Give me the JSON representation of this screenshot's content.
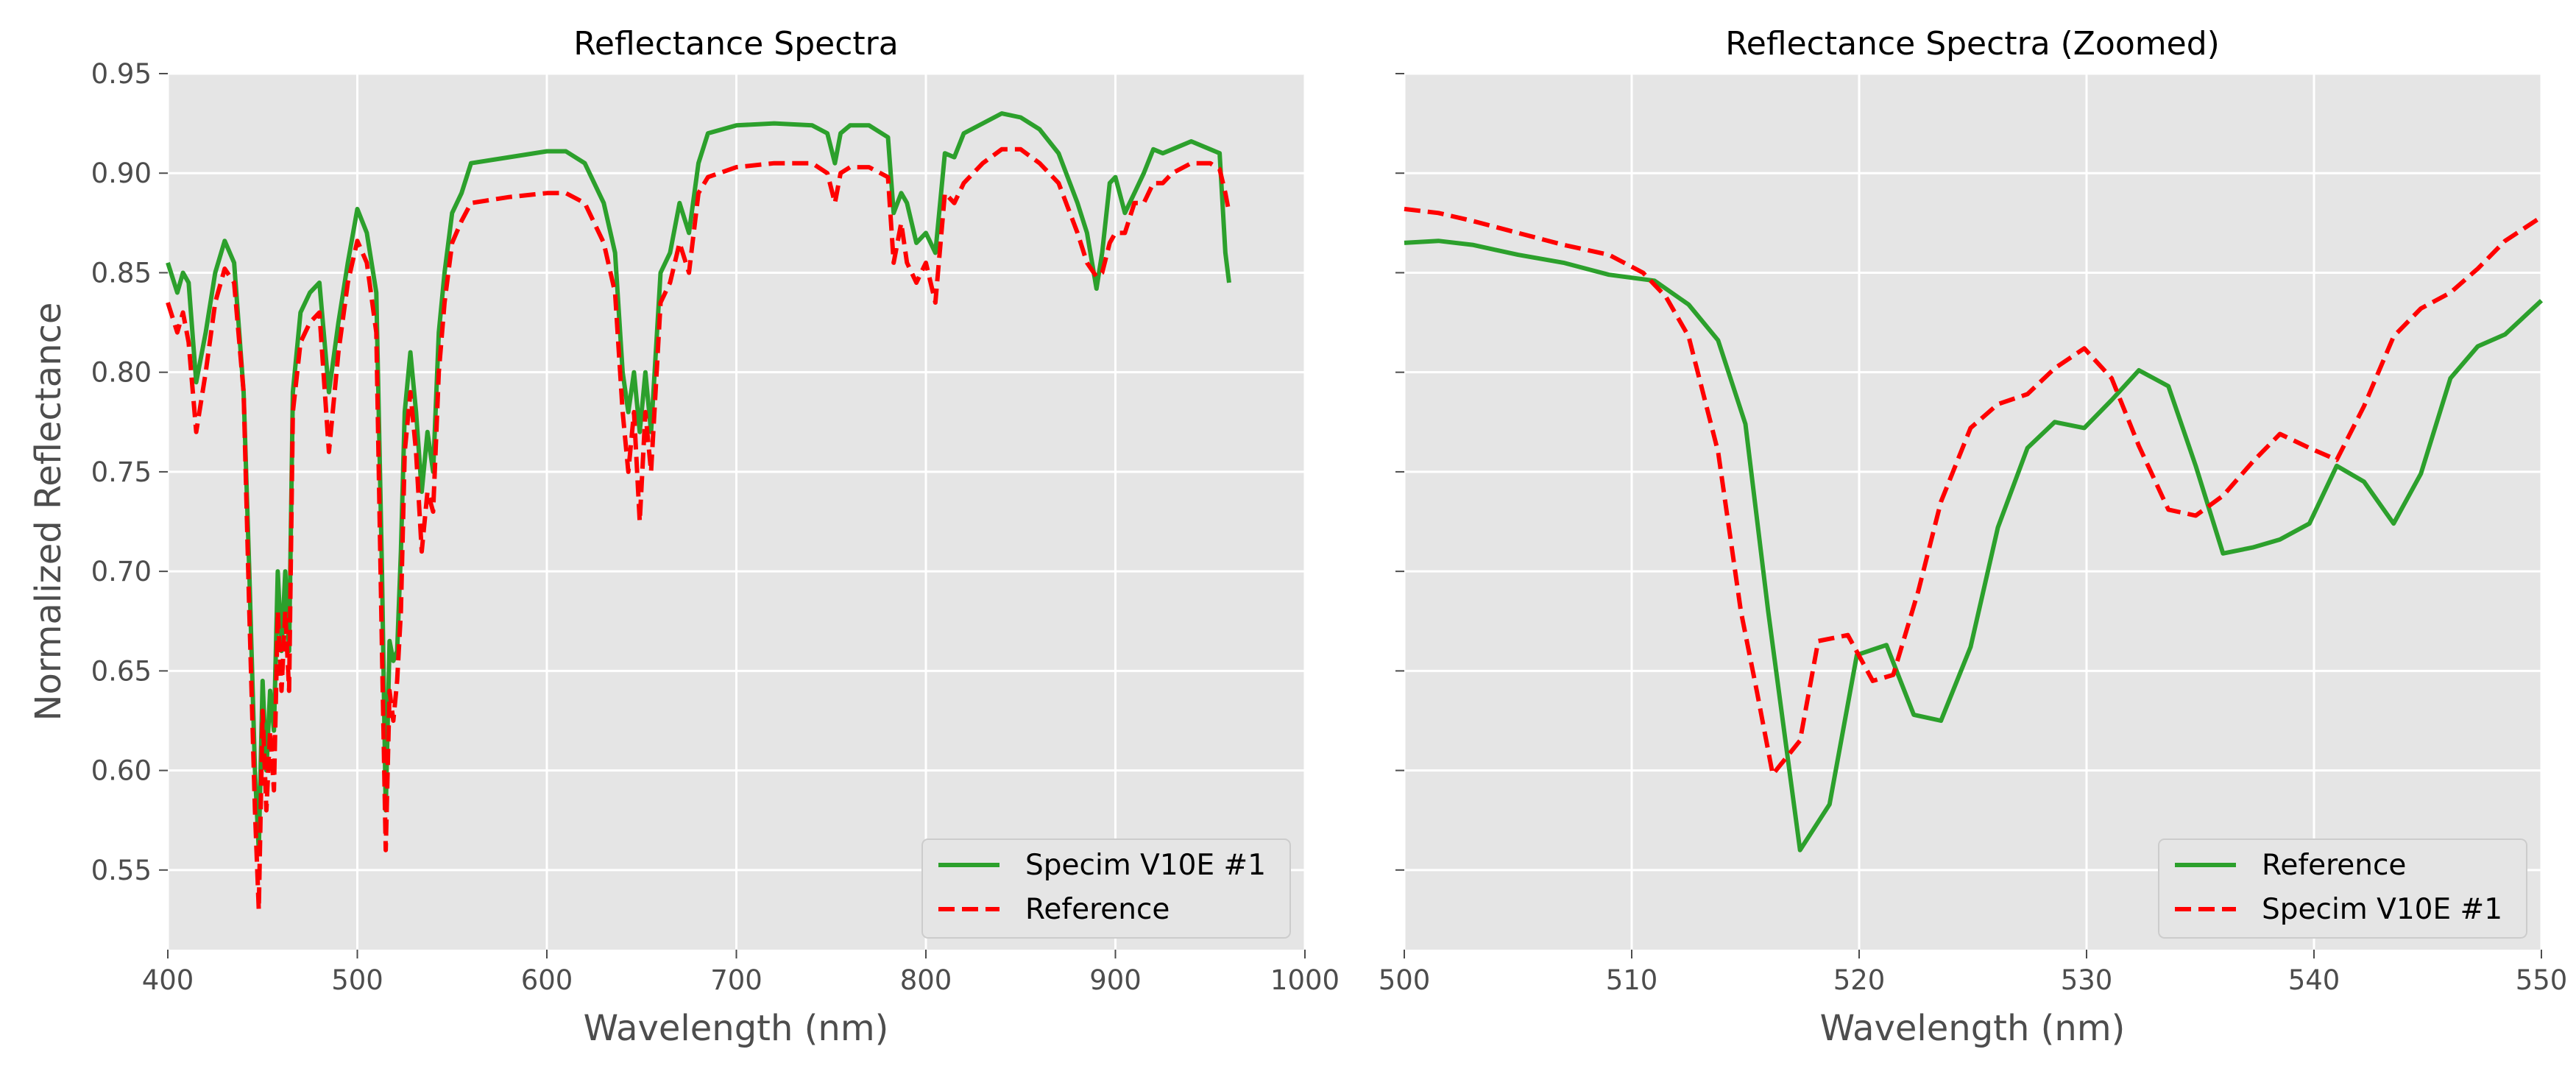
{
  "chart_data": [
    {
      "type": "line",
      "title": "Reflectance Spectra",
      "xlabel": "Wavelength (nm)",
      "ylabel": "Normalized Reflectance",
      "xlim": [
        400,
        1000
      ],
      "ylim": [
        0.51,
        0.95
      ],
      "xticks": [
        "400",
        "500",
        "600",
        "700",
        "800",
        "900",
        "1000"
      ],
      "yticks": [
        "0.55",
        "0.60",
        "0.65",
        "0.70",
        "0.75",
        "0.80",
        "0.85",
        "0.90",
        "0.95"
      ],
      "grid": true,
      "legend_position": "lower-right",
      "series": [
        {
          "name": "Specim V10E #1",
          "color": "#2ca02c",
          "style": "solid",
          "x": [
            400,
            405,
            408,
            411,
            415,
            420,
            425,
            430,
            435,
            440,
            443,
            446,
            448,
            450,
            452,
            454,
            456,
            458,
            460,
            462,
            464,
            466,
            470,
            475,
            480,
            485,
            490,
            495,
            500,
            505,
            510,
            513,
            515,
            517,
            519,
            521,
            523,
            525,
            528,
            531,
            534,
            537,
            540,
            543,
            546,
            550,
            555,
            560,
            580,
            600,
            610,
            620,
            630,
            636,
            640,
            643,
            646,
            649,
            652,
            655,
            660,
            665,
            670,
            675,
            680,
            685,
            700,
            720,
            740,
            748,
            752,
            755,
            760,
            770,
            780,
            783,
            787,
            790,
            795,
            800,
            805,
            810,
            815,
            820,
            830,
            840,
            850,
            860,
            870,
            880,
            885,
            890,
            893,
            897,
            900,
            905,
            910,
            915,
            920,
            925,
            930,
            940,
            950,
            955,
            958,
            960
          ],
          "y": [
            0.855,
            0.84,
            0.85,
            0.845,
            0.795,
            0.82,
            0.85,
            0.866,
            0.855,
            0.79,
            0.7,
            0.6,
            0.56,
            0.645,
            0.6,
            0.64,
            0.62,
            0.7,
            0.66,
            0.7,
            0.66,
            0.79,
            0.83,
            0.84,
            0.845,
            0.79,
            0.825,
            0.855,
            0.882,
            0.87,
            0.84,
            0.7,
            0.58,
            0.665,
            0.655,
            0.66,
            0.71,
            0.78,
            0.81,
            0.78,
            0.74,
            0.77,
            0.75,
            0.82,
            0.85,
            0.88,
            0.89,
            0.905,
            0.908,
            0.911,
            0.911,
            0.905,
            0.885,
            0.86,
            0.8,
            0.78,
            0.8,
            0.77,
            0.8,
            0.77,
            0.85,
            0.86,
            0.885,
            0.87,
            0.905,
            0.92,
            0.924,
            0.925,
            0.924,
            0.92,
            0.905,
            0.92,
            0.924,
            0.924,
            0.918,
            0.88,
            0.89,
            0.885,
            0.865,
            0.87,
            0.86,
            0.91,
            0.908,
            0.92,
            0.925,
            0.93,
            0.928,
            0.922,
            0.91,
            0.885,
            0.87,
            0.842,
            0.86,
            0.895,
            0.898,
            0.88,
            0.89,
            0.9,
            0.912,
            0.91,
            0.912,
            0.916,
            0.912,
            0.91,
            0.86,
            0.845
          ]
        },
        {
          "name": "Reference",
          "color": "#ff0000",
          "style": "dashed",
          "x": [
            400,
            405,
            408,
            411,
            415,
            420,
            425,
            430,
            435,
            440,
            443,
            446,
            448,
            450,
            452,
            454,
            456,
            458,
            460,
            462,
            464,
            466,
            470,
            475,
            480,
            485,
            490,
            495,
            500,
            505,
            510,
            513,
            515,
            517,
            519,
            521,
            523,
            525,
            528,
            531,
            534,
            537,
            540,
            543,
            546,
            550,
            555,
            560,
            580,
            600,
            610,
            620,
            630,
            636,
            640,
            643,
            646,
            649,
            652,
            655,
            660,
            665,
            670,
            675,
            680,
            685,
            700,
            720,
            740,
            748,
            752,
            755,
            760,
            770,
            780,
            783,
            787,
            790,
            795,
            800,
            805,
            810,
            815,
            820,
            830,
            840,
            850,
            860,
            870,
            880,
            885,
            890,
            893,
            897,
            900,
            905,
            910,
            915,
            920,
            925,
            930,
            940,
            950,
            955,
            958,
            960
          ],
          "y": [
            0.835,
            0.82,
            0.83,
            0.815,
            0.77,
            0.8,
            0.835,
            0.852,
            0.845,
            0.79,
            0.68,
            0.58,
            0.53,
            0.63,
            0.58,
            0.62,
            0.59,
            0.68,
            0.64,
            0.68,
            0.64,
            0.78,
            0.815,
            0.825,
            0.83,
            0.76,
            0.81,
            0.845,
            0.866,
            0.855,
            0.82,
            0.66,
            0.56,
            0.64,
            0.625,
            0.645,
            0.68,
            0.76,
            0.79,
            0.76,
            0.71,
            0.74,
            0.73,
            0.8,
            0.835,
            0.865,
            0.876,
            0.885,
            0.888,
            0.89,
            0.89,
            0.885,
            0.865,
            0.84,
            0.78,
            0.75,
            0.78,
            0.725,
            0.78,
            0.75,
            0.835,
            0.845,
            0.865,
            0.85,
            0.89,
            0.898,
            0.903,
            0.905,
            0.905,
            0.9,
            0.885,
            0.9,
            0.903,
            0.903,
            0.898,
            0.855,
            0.875,
            0.855,
            0.845,
            0.855,
            0.835,
            0.89,
            0.885,
            0.895,
            0.905,
            0.912,
            0.912,
            0.905,
            0.895,
            0.87,
            0.855,
            0.848,
            0.85,
            0.865,
            0.87,
            0.87,
            0.885,
            0.885,
            0.895,
            0.895,
            0.9,
            0.905,
            0.905,
            0.902,
            0.89,
            0.88
          ]
        }
      ]
    },
    {
      "type": "line",
      "title": "Reflectance Spectra (Zoomed)",
      "xlabel": "Wavelength (nm)",
      "ylabel": "",
      "xlim": [
        500,
        550
      ],
      "ylim": [
        0.51,
        0.95
      ],
      "xticks": [
        "500",
        "510",
        "520",
        "530",
        "540",
        "550"
      ],
      "yticks_shared": true,
      "grid": true,
      "legend_position": "lower-right",
      "series": [
        {
          "name": "Reference",
          "color": "#2ca02c",
          "style": "solid",
          "x": [
            500,
            501.5,
            503,
            505,
            507,
            509,
            511,
            512.5,
            513.8,
            515,
            516,
            517.4,
            518.7,
            519.9,
            521.2,
            522.4,
            523.6,
            524.9,
            526.1,
            527.4,
            528.6,
            529.9,
            531.1,
            532.3,
            533.6,
            534.8,
            536,
            537.3,
            538.5,
            539.8,
            541,
            542.2,
            543.5,
            544.7,
            546,
            547.2,
            548.4,
            550
          ],
          "y": [
            0.865,
            0.866,
            0.864,
            0.859,
            0.855,
            0.849,
            0.846,
            0.834,
            0.816,
            0.774,
            0.68,
            0.56,
            0.583,
            0.658,
            0.663,
            0.628,
            0.625,
            0.662,
            0.722,
            0.762,
            0.775,
            0.772,
            0.786,
            0.801,
            0.793,
            0.753,
            0.709,
            0.712,
            0.716,
            0.724,
            0.753,
            0.745,
            0.724,
            0.749,
            0.797,
            0.813,
            0.819,
            0.836
          ]
        },
        {
          "name": "Specim V10E #1",
          "color": "#ff0000",
          "style": "dashed",
          "x": [
            500,
            501.5,
            503,
            505,
            507,
            509,
            510.5,
            511.5,
            512.5,
            513.8,
            514.8,
            515.5,
            516.2,
            517.4,
            518.2,
            519.5,
            520.6,
            521.5,
            522.6,
            523.6,
            524.9,
            526.1,
            527.4,
            528.6,
            529.9,
            531.1,
            532.3,
            533.6,
            534.8,
            536,
            537.3,
            538.5,
            539.8,
            541,
            542.2,
            543.5,
            544.7,
            546,
            547.2,
            548.4,
            550
          ],
          "y": [
            0.882,
            0.88,
            0.876,
            0.87,
            0.864,
            0.859,
            0.85,
            0.838,
            0.818,
            0.76,
            0.68,
            0.64,
            0.598,
            0.615,
            0.665,
            0.668,
            0.645,
            0.648,
            0.69,
            0.735,
            0.772,
            0.784,
            0.789,
            0.802,
            0.812,
            0.797,
            0.763,
            0.731,
            0.728,
            0.738,
            0.755,
            0.769,
            0.762,
            0.756,
            0.783,
            0.818,
            0.832,
            0.84,
            0.852,
            0.866,
            0.878
          ]
        }
      ]
    }
  ]
}
